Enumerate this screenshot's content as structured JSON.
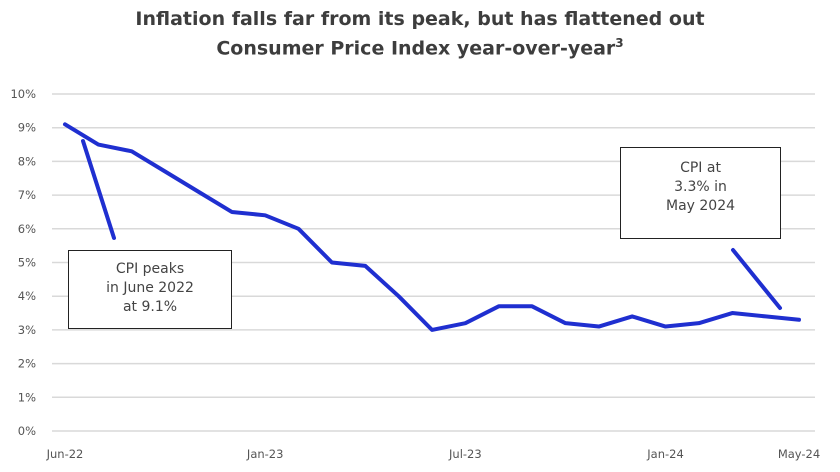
{
  "chart_data": {
    "type": "line",
    "title": "Inflation falls far from its peak, but has flattened out",
    "subtitle": "Consumer Price Index year-over-year",
    "subtitle_footnote": "3",
    "x": [
      "Jun-22",
      "Jul-22",
      "Aug-22",
      "Oct-22",
      "Nov-22",
      "Dec-22",
      "Jan-23",
      "Feb-23",
      "Mar-23",
      "Apr-23",
      "May-23",
      "Jun-23",
      "Jul-23",
      "Aug-23",
      "Sep-23",
      "Oct-23",
      "Nov-23",
      "Dec-23",
      "Jan-24",
      "Feb-24",
      "Mar-24",
      "Apr-24",
      "May-24"
    ],
    "series": [
      {
        "values": [
          9.1,
          8.5,
          8.3,
          7.7,
          7.1,
          6.5,
          6.4,
          6.0,
          5.0,
          4.9,
          4.0,
          3.0,
          3.2,
          3.7,
          3.7,
          3.2,
          3.1,
          3.4,
          3.1,
          3.2,
          3.5,
          3.4,
          3.3
        ],
        "color": "#1f2fd0"
      }
    ],
    "x_tick_labels": [
      "Jun-22",
      "Jan-23",
      "Jul-23",
      "Jan-24",
      "May-24"
    ],
    "y_tick_labels": [
      "0%",
      "1%",
      "2%",
      "3%",
      "4%",
      "5%",
      "6%",
      "7%",
      "8%",
      "9%",
      "10%"
    ],
    "ylim": [
      0,
      10
    ],
    "grid": "horizontal",
    "annotations": [
      {
        "lines": [
          "CPI peaks",
          "in June 2022",
          "at 9.1%"
        ],
        "points_to": "Jun-22"
      },
      {
        "lines": [
          "CPI at",
          "3.3% in",
          "May 2024"
        ],
        "points_to": "May-24"
      }
    ]
  }
}
